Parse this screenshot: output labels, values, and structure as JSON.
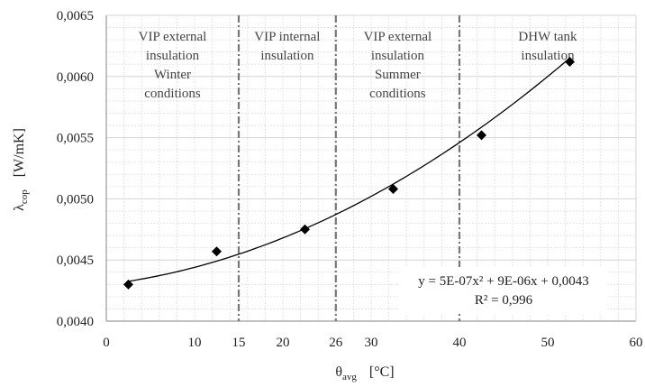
{
  "chart_data": {
    "type": "scatter",
    "xlim": [
      0,
      60
    ],
    "ylim": [
      0.004,
      0.0065
    ],
    "x_ticks": [
      {
        "value": 0,
        "label": "0"
      },
      {
        "value": 10,
        "label": "10"
      },
      {
        "value": 15,
        "label": "15"
      },
      {
        "value": 20,
        "label": "20"
      },
      {
        "value": 26,
        "label": "26"
      },
      {
        "value": 30,
        "label": "30"
      },
      {
        "value": 40,
        "label": "40"
      },
      {
        "value": 50,
        "label": "50"
      },
      {
        "value": 60,
        "label": "60"
      }
    ],
    "y_ticks": [
      {
        "value": 0.004,
        "label": "0,0040"
      },
      {
        "value": 0.0045,
        "label": "0,0045"
      },
      {
        "value": 0.005,
        "label": "0,0050"
      },
      {
        "value": 0.0055,
        "label": "0,0055"
      },
      {
        "value": 0.006,
        "label": "0,0060"
      },
      {
        "value": 0.0065,
        "label": "0,0065"
      }
    ],
    "xlabel": {
      "symbol": "θ",
      "subscript": "avg",
      "unit": "[°C]"
    },
    "ylabel": {
      "symbol": "λ",
      "subscript": "cop",
      "unit": "[W/mK]"
    },
    "grid": true,
    "points": [
      {
        "x": 2.5,
        "y": 0.0043
      },
      {
        "x": 12.5,
        "y": 0.00457
      },
      {
        "x": 22.5,
        "y": 0.00475
      },
      {
        "x": 32.5,
        "y": 0.00508
      },
      {
        "x": 42.5,
        "y": 0.00552
      },
      {
        "x": 52.5,
        "y": 0.00612
      }
    ],
    "trendline": {
      "type": "polynomial",
      "coefficients": {
        "a": 5e-07,
        "b": 9e-06,
        "c": 0.0043
      },
      "x_range": [
        2.5,
        52.5
      ],
      "equation_text": "y = 5E-07x² + 9E-06x + 0,0043",
      "r2_text": "R² = 0,996"
    },
    "boundaries": [
      15,
      26,
      40
    ],
    "regions": [
      {
        "x_center": 7.5,
        "lines": [
          "VIP external",
          "insulation",
          "Winter",
          "conditions"
        ]
      },
      {
        "x_center": 20.5,
        "lines": [
          "VIP internal",
          "insulation"
        ]
      },
      {
        "x_center": 33,
        "lines": [
          "VIP external",
          "insulation",
          "Summer",
          "conditions"
        ]
      },
      {
        "x_center": 50,
        "lines": [
          "DHW tank",
          "insulation"
        ]
      }
    ],
    "colors": {
      "axis": "#9a9a9a",
      "grid": "#d4d4d4",
      "boundary": "#777777",
      "marker": "#000000",
      "curve": "#000000"
    }
  }
}
